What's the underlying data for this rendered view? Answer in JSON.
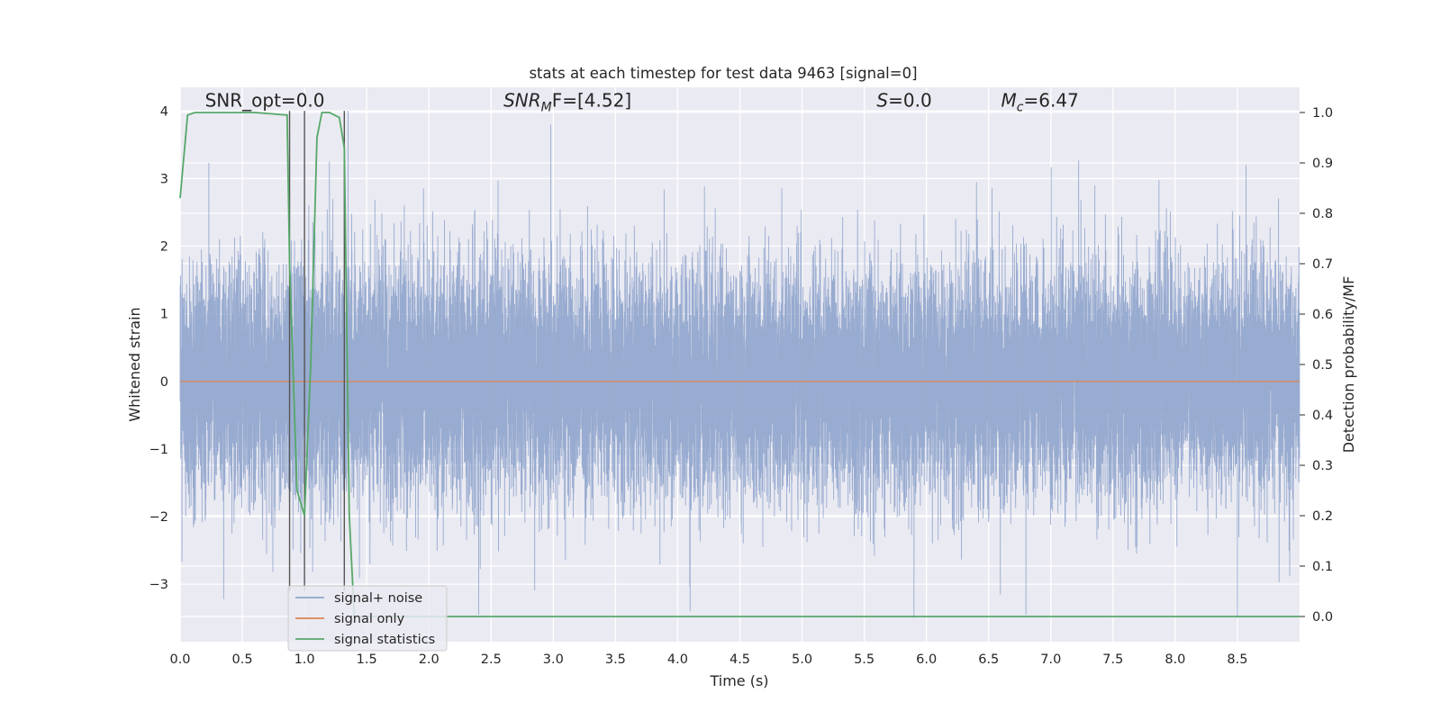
{
  "chart_data": {
    "type": "line",
    "title": "stats at each timestep for test data 9463 [signal=0]",
    "xlabel": "Time (s)",
    "ylabel_left": "Whitened strain",
    "ylabel_right": "Detection probability/MF",
    "xlim": [
      0.0,
      9.0
    ],
    "ylim_left": [
      -3.85,
      4.35
    ],
    "ylim_right": [
      -0.05,
      1.05
    ],
    "xticks": [
      0.0,
      0.5,
      1.0,
      1.5,
      2.0,
      2.5,
      3.0,
      3.5,
      4.0,
      4.5,
      5.0,
      5.5,
      6.0,
      6.5,
      7.0,
      7.5,
      8.0,
      8.5
    ],
    "xtick_labels": [
      "0.0",
      "0.5",
      "1.0",
      "1.5",
      "2.0",
      "2.5",
      "3.0",
      "3.5",
      "4.0",
      "4.5",
      "5.0",
      "5.5",
      "6.0",
      "6.5",
      "7.0",
      "7.5",
      "8.0",
      "8.5"
    ],
    "yticks_left": [
      4,
      3,
      2,
      1,
      0,
      -1,
      -2,
      -3
    ],
    "ytick_labels_left": [
      "4",
      "3",
      "2",
      "1",
      "0",
      "−1",
      "−2",
      "−3"
    ],
    "yticks_right": [
      1.0,
      0.9,
      0.8,
      0.7,
      0.6,
      0.5,
      0.4,
      0.3,
      0.2,
      0.1,
      0.0
    ],
    "ytick_labels_right": [
      "1.0",
      "0.9",
      "0.8",
      "0.7",
      "0.6",
      "0.5",
      "0.4",
      "0.3",
      "0.2",
      "0.1",
      "0.0"
    ],
    "grid": true,
    "legend_placement": "lower-left",
    "annotations": [
      {
        "key": "snr_opt",
        "main": "SNR_opt=0.0",
        "sub": "",
        "rest": "",
        "x": 0.2,
        "y": 4.0
      },
      {
        "key": "snr_mf",
        "main": "SNR",
        "sub": "M",
        "rest": "F=[4.52]",
        "x": 2.6,
        "y": 4.0
      },
      {
        "key": "s",
        "main": "S",
        "sub": "",
        "rest": "=0.0",
        "x": 5.6,
        "y": 4.0
      },
      {
        "key": "mc",
        "main": "M",
        "sub": "c",
        "rest": "=6.47",
        "x": 6.6,
        "y": 4.0
      }
    ],
    "vlines_x": [
      0.88,
      1.0,
      1.32
    ],
    "series": [
      {
        "key": "noise",
        "name": "signal+ noise",
        "axis": "left",
        "color": "#8fa4cc",
        "sampling_rate_hz": 2048,
        "noise_std": 0.85,
        "noise_max": 4.0,
        "noise_min": -3.5,
        "notable_peaks": [
          [
            1.35,
            4.0
          ],
          [
            2.98,
            3.8
          ],
          [
            6.8,
            3.35
          ],
          [
            8.57,
            3.2
          ],
          [
            1.2,
            3.25
          ],
          [
            2.4,
            -3.45
          ],
          [
            4.1,
            -3.4
          ],
          [
            5.9,
            -3.5
          ],
          [
            6.8,
            -3.45
          ],
          [
            8.5,
            -3.5
          ]
        ]
      },
      {
        "key": "signal",
        "name": "signal only",
        "axis": "left",
        "color": "#dd8452",
        "x": [
          0.0,
          9.0
        ],
        "y": [
          0.0,
          0.0
        ]
      },
      {
        "key": "stats",
        "name": "signal statistics",
        "axis": "right",
        "color": "#55a868",
        "x": [
          0.0,
          0.06,
          0.12,
          0.3,
          0.6,
          0.86,
          0.88,
          0.94,
          1.0,
          1.05,
          1.1,
          1.14,
          1.2,
          1.28,
          1.32,
          1.36,
          1.4,
          1.5,
          2.0,
          9.0
        ],
        "y": [
          0.83,
          0.995,
          1.0,
          1.0,
          1.0,
          0.995,
          0.7,
          0.25,
          0.2,
          0.5,
          0.95,
          1.0,
          1.0,
          0.99,
          0.93,
          0.2,
          0.0,
          0.0,
          0.0,
          0.0
        ]
      }
    ]
  }
}
